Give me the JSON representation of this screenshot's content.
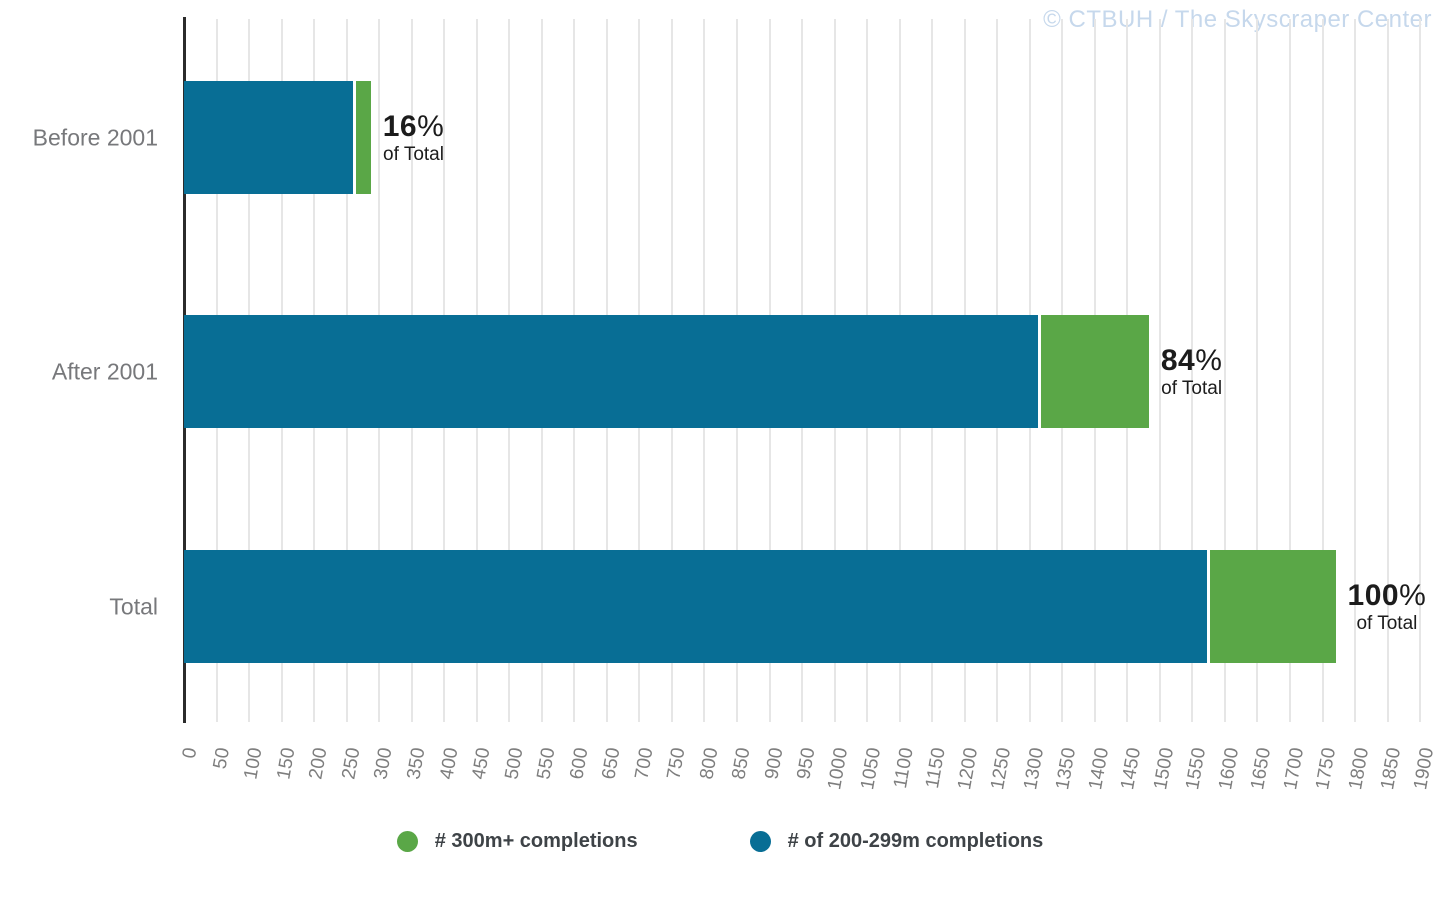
{
  "watermark": "© CTBUH / The Skyscraper Center",
  "chart_data": {
    "type": "bar",
    "orientation": "horizontal",
    "stacked": true,
    "title": "",
    "categories": [
      "Before 2001",
      "After 2001",
      "Total"
    ],
    "series": [
      {
        "name": "# of 200-299m completions",
        "color": "#086e95",
        "values": [
          260,
          1313,
          1573
        ]
      },
      {
        "name": "# 300m+ completions",
        "color": "#5aa747",
        "values": [
          27,
          170,
          197
        ]
      }
    ],
    "stack_totals": [
      287,
      1483,
      1770
    ],
    "bar_annotations": [
      {
        "value": "16",
        "sign": "%",
        "suffix": "of Total"
      },
      {
        "value": "84",
        "sign": "%",
        "suffix": "of Total"
      },
      {
        "value": "100",
        "sign": "%",
        "suffix": "of Total"
      }
    ],
    "x_axis": {
      "min": 0,
      "max": 1900,
      "tick_step": 50,
      "ticks": [
        0,
        50,
        100,
        150,
        200,
        250,
        300,
        350,
        400,
        450,
        500,
        550,
        600,
        650,
        700,
        750,
        800,
        850,
        900,
        950,
        1000,
        1050,
        1100,
        1150,
        1200,
        1250,
        1300,
        1350,
        1400,
        1450,
        1500,
        1550,
        1600,
        1650,
        1700,
        1750,
        1800,
        1850,
        1900
      ]
    },
    "grid": true,
    "legend": {
      "position": "bottom",
      "items": [
        {
          "label": "# 300m+ completions",
          "color": "#5aa747"
        },
        {
          "label": "# of 200-299m completions",
          "color": "#086e95"
        }
      ]
    }
  },
  "colors": {
    "bar_blue": "#086e95",
    "bar_green": "#5aa747",
    "axis_line": "#2b2b2b",
    "gridline": "#e6e6e6",
    "category_label": "#77787b",
    "tick_label": "#7e7e7e",
    "annotation_text": "#1c1c1c",
    "legend_text": "#3e4347",
    "watermark": "#c6d8ec",
    "background": "#ffffff"
  }
}
